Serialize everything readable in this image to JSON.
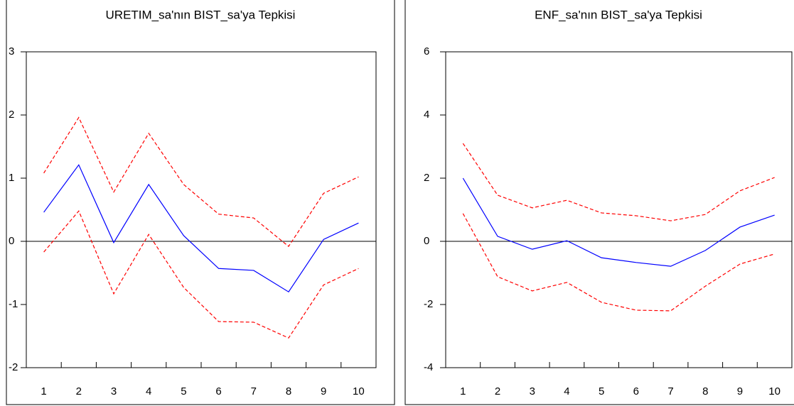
{
  "chart_data": [
    {
      "type": "line",
      "title": "URETIM_sa'nın BIST_sa'ya Tepkisi",
      "categories": [
        "1",
        "2",
        "3",
        "4",
        "5",
        "6",
        "7",
        "8",
        "9",
        "10"
      ],
      "series": [
        {
          "color": "#0000ff",
          "style": "solid",
          "values": [
            0.46,
            1.21,
            -0.02,
            0.9,
            0.09,
            -0.43,
            -0.46,
            -0.8,
            0.03,
            0.29
          ]
        },
        {
          "color": "#ff0000",
          "style": "dashed",
          "values": [
            1.08,
            1.96,
            0.78,
            1.71,
            0.9,
            0.43,
            0.37,
            -0.08,
            0.76,
            1.02
          ]
        },
        {
          "color": "#ff0000",
          "style": "dashed",
          "values": [
            -0.17,
            0.48,
            -0.83,
            0.11,
            -0.73,
            -1.27,
            -1.28,
            -1.53,
            -0.69,
            -0.43
          ]
        }
      ],
      "ylim": [
        -2,
        3
      ],
      "yticks": [
        -2,
        -1,
        0,
        1,
        2,
        3
      ],
      "zero_line": true,
      "grid": false
    },
    {
      "type": "line",
      "title": "ENF_sa'nın BIST_sa'ya Tepkisi",
      "categories": [
        "1",
        "2",
        "3",
        "4",
        "5",
        "6",
        "7",
        "8",
        "9",
        "10"
      ],
      "series": [
        {
          "color": "#0000ff",
          "style": "solid",
          "values": [
            2.0,
            0.16,
            -0.25,
            0.02,
            -0.52,
            -0.67,
            -0.79,
            -0.29,
            0.45,
            0.83
          ]
        },
        {
          "color": "#ff0000",
          "style": "dashed",
          "values": [
            3.1,
            1.46,
            1.06,
            1.3,
            0.9,
            0.81,
            0.65,
            0.85,
            1.6,
            2.02
          ]
        },
        {
          "color": "#ff0000",
          "style": "dashed",
          "values": [
            0.88,
            -1.12,
            -1.57,
            -1.3,
            -1.93,
            -2.18,
            -2.2,
            -1.42,
            -0.72,
            -0.4
          ]
        }
      ],
      "ylim": [
        -4,
        6
      ],
      "yticks": [
        -4,
        -2,
        0,
        2,
        4,
        6
      ],
      "zero_line": true,
      "grid": false
    }
  ]
}
